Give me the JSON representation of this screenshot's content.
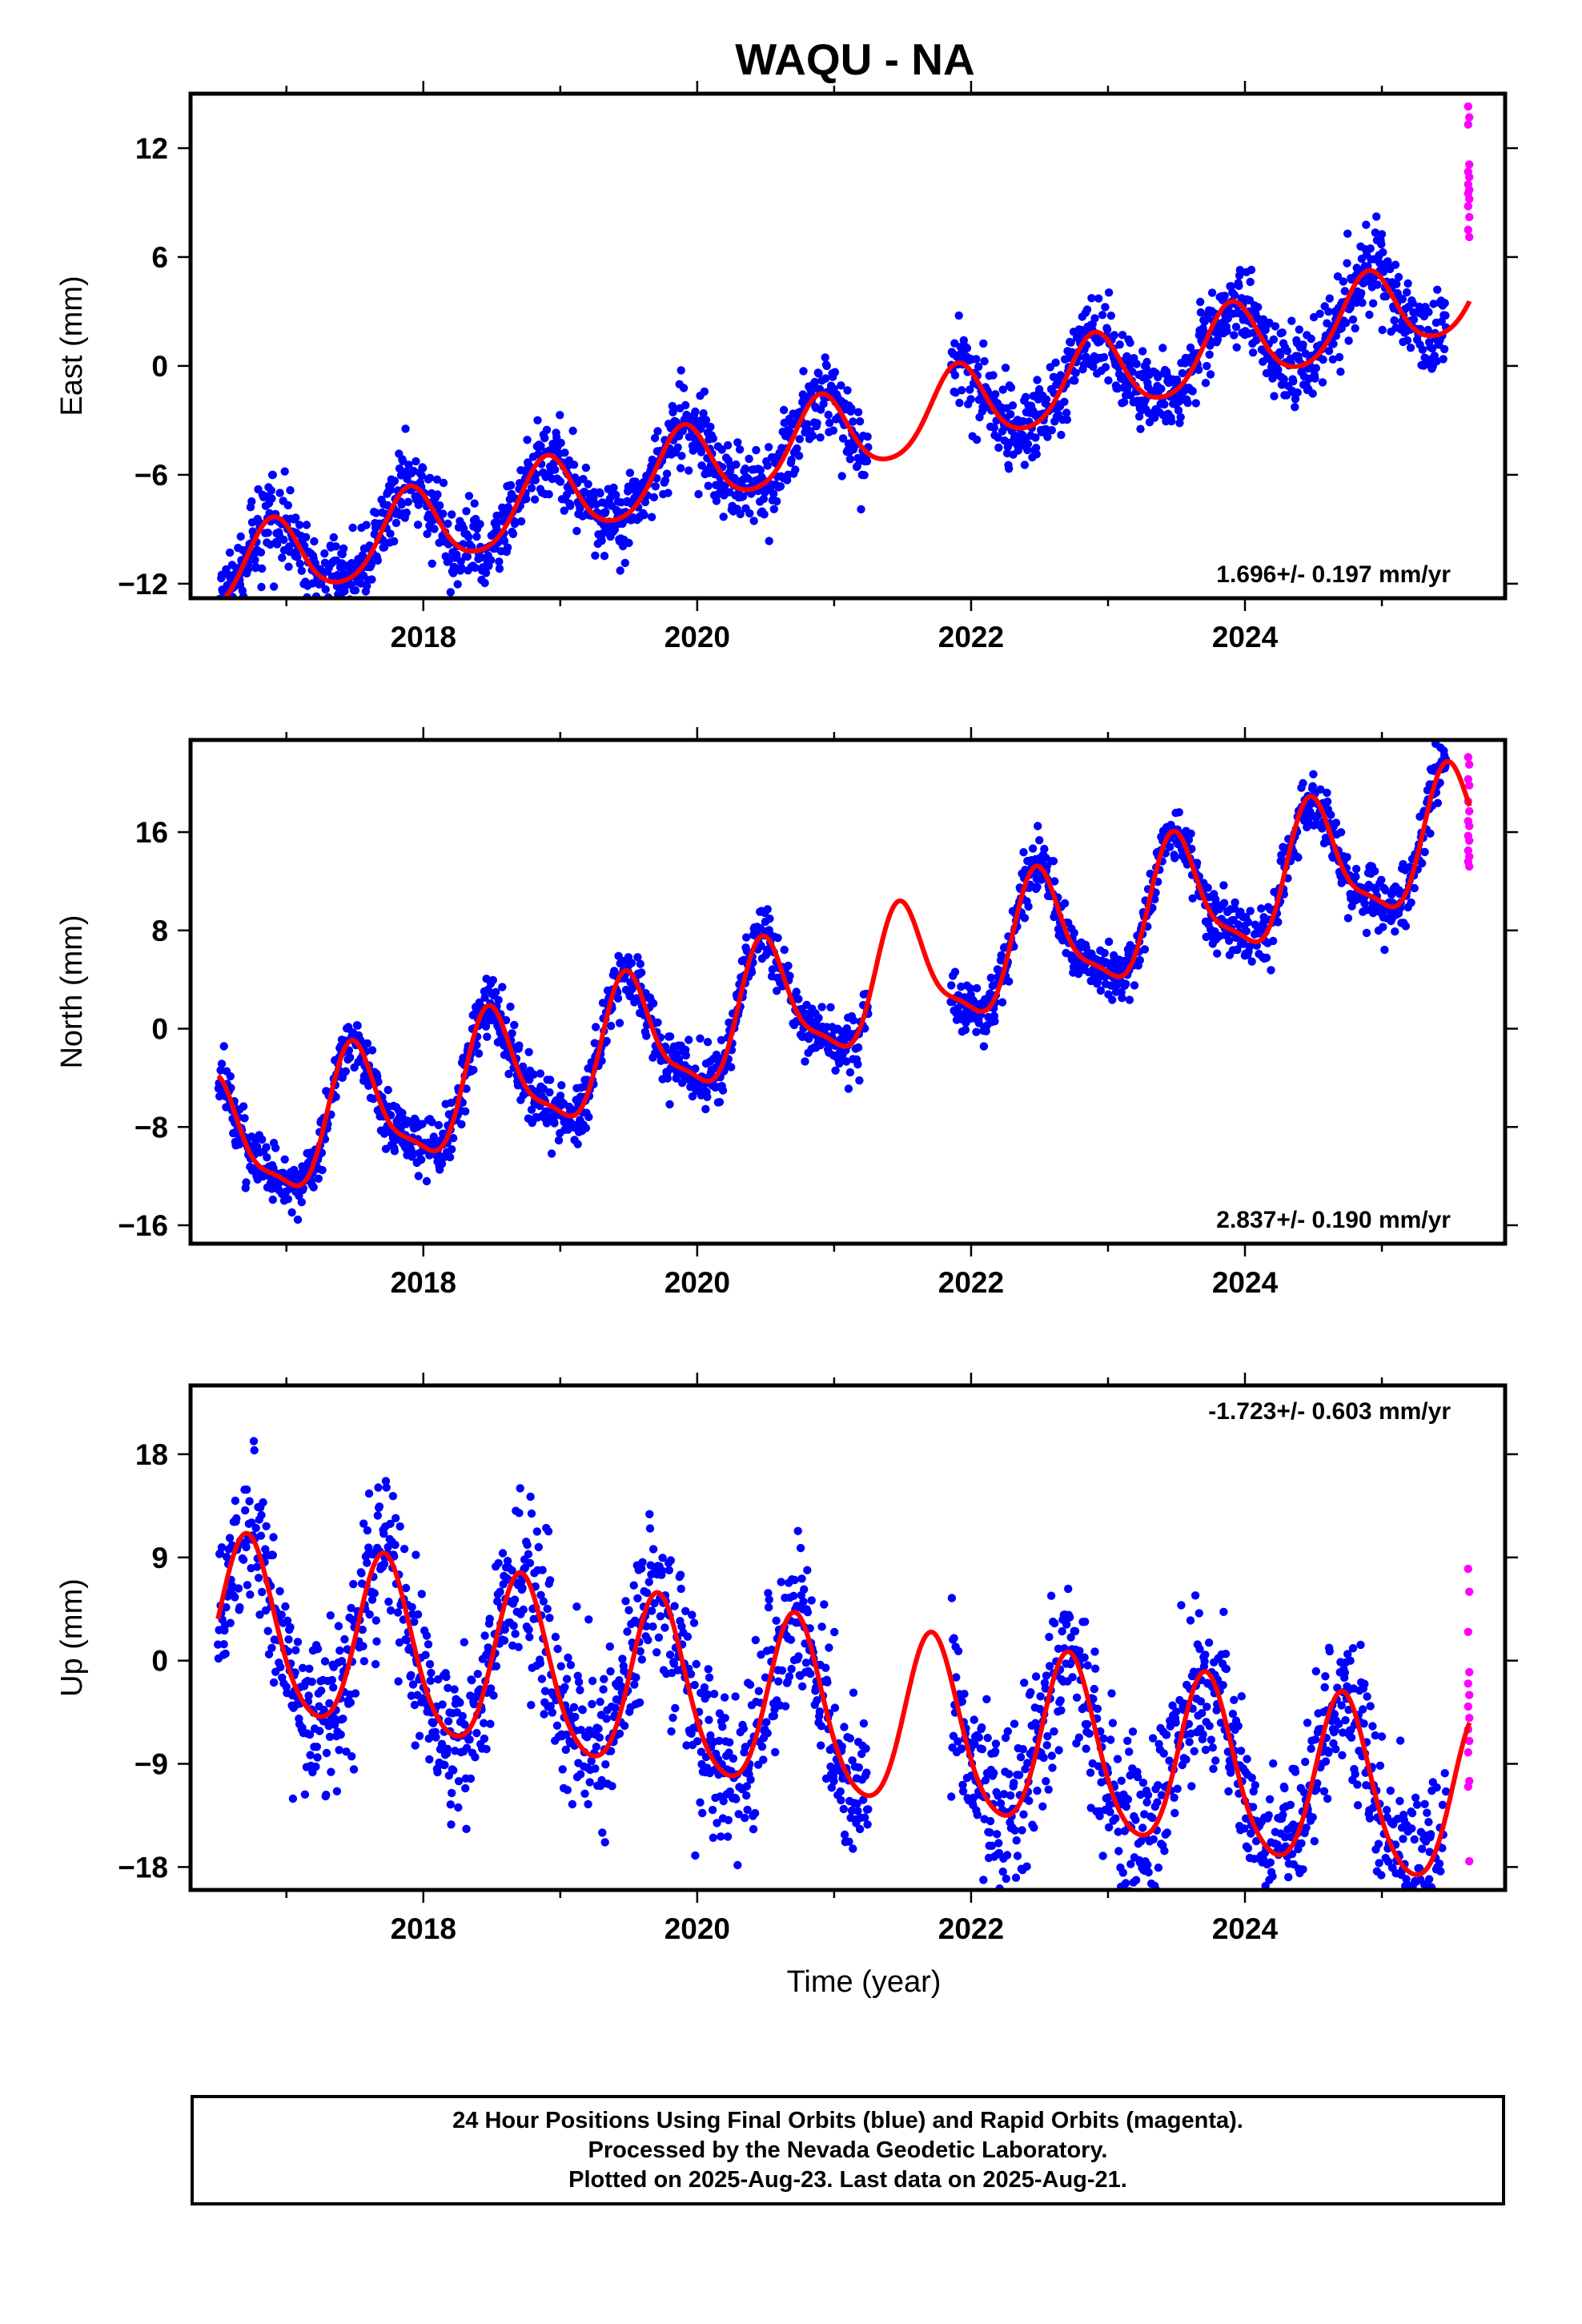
{
  "title": "WAQU - NA",
  "colors": {
    "final_orbits": "#0000ff",
    "rapid_orbits": "#ff00ff",
    "model": "#ff0000",
    "frame": "#000000"
  },
  "chart_data": [
    {
      "type": "scatter",
      "component": "east",
      "ylabel": "East (mm)",
      "xlabel": "",
      "xlim": [
        2016.3,
        2025.9
      ],
      "ylim": [
        -12.8,
        15.0
      ],
      "xticks": [
        "2018",
        "2020",
        "2022",
        "2024"
      ],
      "yticks": [
        "12",
        "6",
        "0",
        "-6",
        "-12"
      ],
      "rate_text": "1.696+/- 0.197 mm/yr",
      "rate_position": "bottom-right",
      "model": {
        "rate": 1.696,
        "offset": -11.5,
        "t0": 2016.5,
        "annual_amp": 2.2,
        "annual_peak": 2016.9,
        "semiannual_amp": 0.3,
        "semiannual_phase": 0.0
      },
      "scatter_std": 1.1,
      "gap": [
        2021.25,
        2021.85
      ],
      "final_range": [
        2016.5,
        2025.47
      ],
      "rapid_range": [
        2025.47,
        2025.64
      ],
      "rapid_points": 14,
      "rapid_values": [
        14.3,
        13.7,
        13.3,
        11.1,
        10.7,
        10.4,
        10.0,
        9.7,
        9.5,
        9.2,
        8.8,
        8.2,
        7.5,
        7.1
      ]
    },
    {
      "type": "scatter",
      "component": "north",
      "ylabel": "North (mm)",
      "xlabel": "",
      "xlim": [
        2016.3,
        2025.9
      ],
      "ylim": [
        -17.5,
        23.5
      ],
      "xticks": [
        "2018",
        "2020",
        "2022",
        "2024"
      ],
      "yticks": [
        "16",
        "8",
        "0",
        "-8",
        "-16"
      ],
      "rate_text": "2.837+/- 0.190 mm/yr",
      "rate_position": "bottom-right",
      "model": {
        "rate": 2.837,
        "offset": -10.0,
        "t0": 2016.5,
        "annual_amp": 5.0,
        "annual_peak": 2016.5,
        "semiannual_amp": 1.4,
        "semiannual_phase": 0.6
      },
      "scatter_std": 1.2,
      "gap": [
        2021.25,
        2021.85
      ],
      "final_range": [
        2016.5,
        2025.47
      ],
      "rapid_range": [
        2025.47,
        2025.64
      ],
      "rapid_points": 14,
      "rapid_values": [
        22.1,
        21.5,
        20.3,
        19.8,
        18.5,
        17.7,
        16.9,
        16.5,
        15.7,
        15.3,
        14.5,
        14.0,
        13.6,
        13.2
      ]
    },
    {
      "type": "scatter",
      "component": "up",
      "ylabel": "Up (mm)",
      "xlabel": "Time (year)",
      "xlim": [
        2016.3,
        2025.9
      ],
      "ylim": [
        -20.0,
        24.0
      ],
      "xticks": [
        "2018",
        "2020",
        "2022",
        "2024"
      ],
      "yticks": [
        "18",
        "9",
        "0",
        "-9",
        "-18"
      ],
      "rate_text": "-1.723+/- 0.603 mm/yr",
      "rate_position": "top-right",
      "model": {
        "rate": -1.723,
        "offset": 3.0,
        "t0": 2016.5,
        "annual_amp": 7.5,
        "annual_peak": 2016.72,
        "semiannual_amp": 1.0,
        "semiannual_phase": 0.3
      },
      "scatter_std": 3.6,
      "gap": [
        2021.25,
        2021.85
      ],
      "final_range": [
        2016.5,
        2025.47
      ],
      "rapid_range": [
        2025.47,
        2025.64
      ],
      "rapid_points": 14,
      "rapid_values": [
        8.0,
        6.0,
        2.5,
        -1.0,
        -2.0,
        -3.0,
        -4.0,
        -5.0,
        -6.0,
        -7.0,
        -8.0,
        -10.5,
        -11.0,
        -17.5
      ]
    }
  ],
  "footer": {
    "line1": "24 Hour Positions Using Final Orbits (blue) and Rapid Orbits (magenta).",
    "line2": "Processed by the Nevada Geodetic Laboratory.",
    "line3": "Plotted on 2025-Aug-23. Last data on 2025-Aug-21."
  }
}
